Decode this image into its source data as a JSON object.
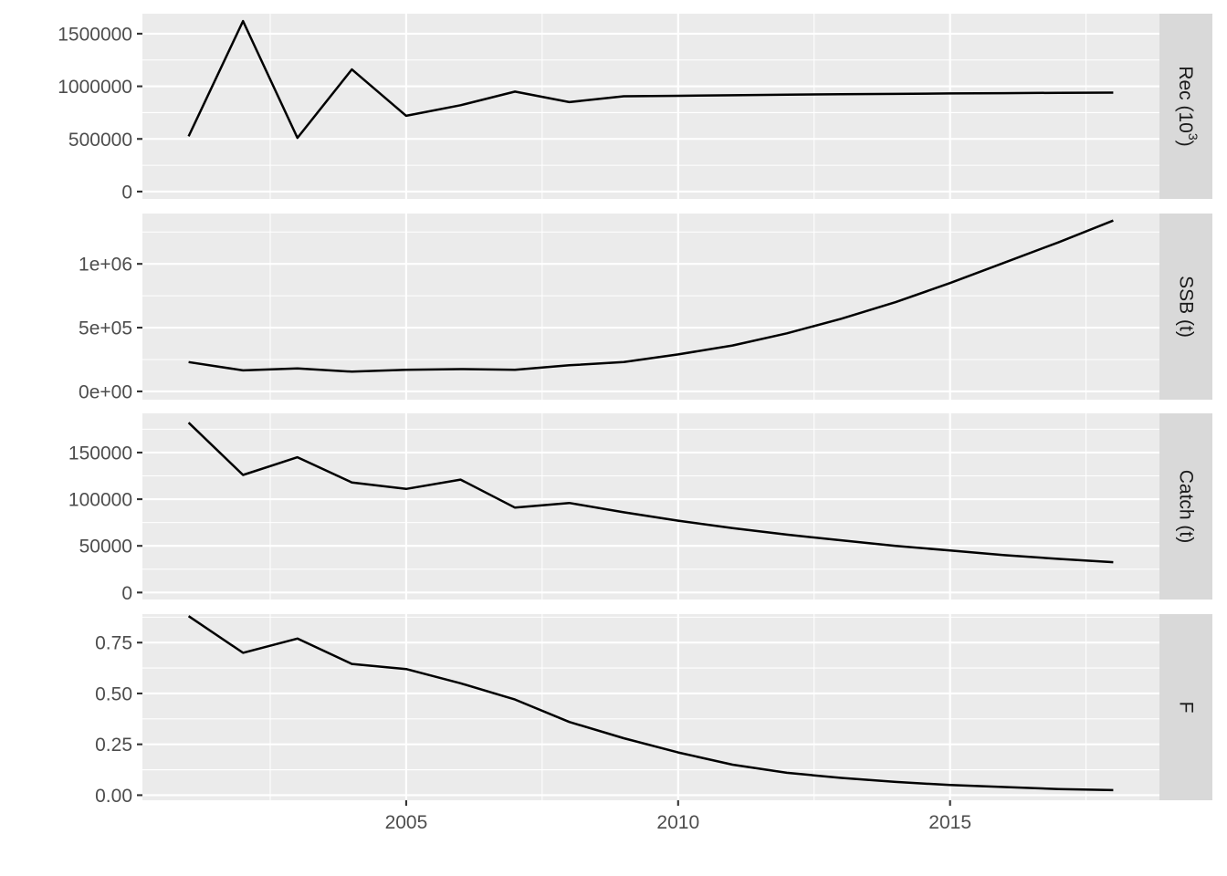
{
  "chart_data": {
    "type": "line",
    "x_ticks": [
      2005,
      2010,
      2015
    ],
    "x_tick_labels": [
      "2005",
      "2010",
      "2015"
    ],
    "x_range": [
      2000.15,
      2018.85
    ],
    "x": [
      2001,
      2002,
      2003,
      2004,
      2005,
      2006,
      2007,
      2008,
      2009,
      2010,
      2011,
      2012,
      2013,
      2014,
      2015,
      2016,
      2017,
      2018
    ],
    "grid": true,
    "facets": [
      {
        "strip_label": "Rec (10³)",
        "strip_base": "Rec (10",
        "strip_sup": "3",
        "strip_close": ")",
        "y_range": [
          -70000,
          1690000
        ],
        "y_ticks": [
          0,
          500000,
          1000000,
          1500000
        ],
        "y_tick_labels": [
          "0",
          "500000",
          "1000000",
          "1500000"
        ],
        "values": [
          525000,
          1620000,
          510000,
          1160000,
          720000,
          820000,
          950000,
          850000,
          905000,
          910000,
          915000,
          920000,
          925000,
          928000,
          932000,
          935000,
          938000,
          940000
        ]
      },
      {
        "strip_label": "SSB (t)",
        "y_range": [
          -65000,
          1395000
        ],
        "y_ticks": [
          0,
          500000,
          1000000
        ],
        "y_tick_labels": [
          "0e+00",
          "5e+05",
          "1e+06"
        ],
        "values": [
          230000,
          165000,
          180000,
          155000,
          170000,
          175000,
          170000,
          205000,
          230000,
          290000,
          360000,
          455000,
          570000,
          700000,
          850000,
          1010000,
          1170000,
          1340000
        ]
      },
      {
        "strip_label": "Catch (t)",
        "y_range": [
          -7500,
          192000
        ],
        "y_ticks": [
          0,
          50000,
          100000,
          150000
        ],
        "y_tick_labels": [
          "0",
          "50000",
          "100000",
          "150000"
        ],
        "values": [
          182000,
          126000,
          145000,
          118000,
          111000,
          121000,
          91000,
          96000,
          86000,
          77000,
          69000,
          62000,
          56000,
          50000,
          45000,
          40000,
          36000,
          32500
        ]
      },
      {
        "strip_label": "F",
        "y_range": [
          -0.025,
          0.89
        ],
        "y_ticks": [
          0,
          0.25,
          0.5,
          0.75
        ],
        "y_tick_labels": [
          "0.00",
          "0.25",
          "0.50",
          "0.75"
        ],
        "values": [
          0.88,
          0.7,
          0.77,
          0.645,
          0.62,
          0.55,
          0.47,
          0.36,
          0.28,
          0.21,
          0.15,
          0.11,
          0.085,
          0.065,
          0.05,
          0.04,
          0.03,
          0.025
        ]
      }
    ]
  }
}
